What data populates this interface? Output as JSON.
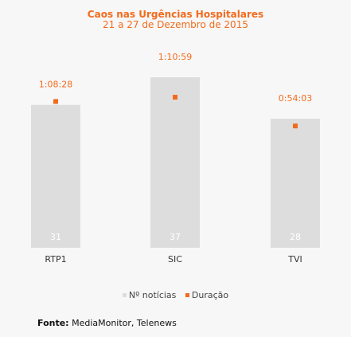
{
  "chart_data": {
    "type": "bar",
    "title": "Caos nas Urgências Hospitalares",
    "subtitle": "21 a 27 de Dezembro de 2015",
    "categories": [
      "RTP1",
      "SIC",
      "TVI"
    ],
    "series": [
      {
        "name": "Nº notícias",
        "type": "bar",
        "values": [
          31,
          37,
          28
        ],
        "color": "#dddddd"
      },
      {
        "name": "Duração",
        "type": "scatter",
        "values": [
          "1:08:28",
          "1:10:59",
          "0:54:03"
        ],
        "seconds": [
          4108,
          4259,
          3243
        ],
        "color": "#f26b1d"
      }
    ],
    "bar_label_color": "#ffffff",
    "duration_label_color": "#f26b1d",
    "legend_position": "bottom",
    "grid": false
  },
  "source": {
    "label": "Fonte:",
    "text": " MediaMonitor, Telenews"
  }
}
